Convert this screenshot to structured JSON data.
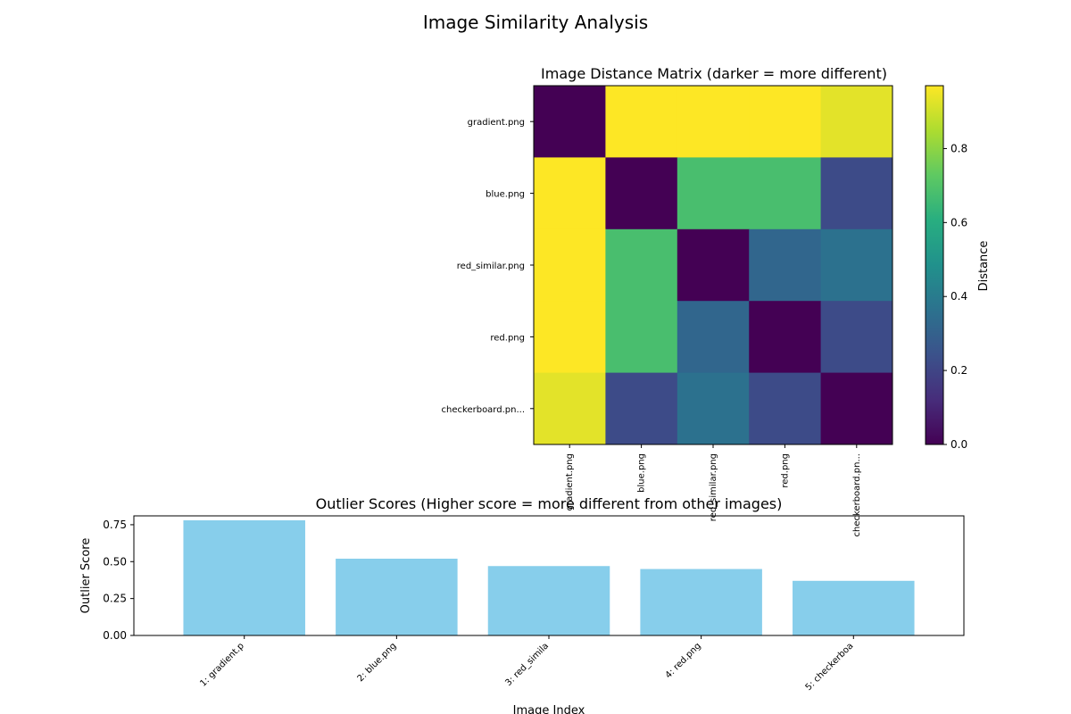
{
  "figure": {
    "title": "Image Similarity Analysis"
  },
  "chart_data": [
    {
      "type": "heatmap",
      "title": "Image Distance Matrix (darker = more different)",
      "row_labels": [
        "gradient.png",
        "blue.png",
        "red_similar.png",
        "red.png",
        "checkerboard.pn..."
      ],
      "col_labels": [
        "gradient.png",
        "blue.png",
        "red_similar.png",
        "red.png",
        "checkerboard.pn..."
      ],
      "values": [
        [
          0.0,
          0.97,
          0.97,
          0.97,
          0.93
        ],
        [
          0.97,
          0.0,
          0.68,
          0.68,
          0.22
        ],
        [
          0.97,
          0.68,
          0.0,
          0.32,
          0.36
        ],
        [
          0.97,
          0.68,
          0.32,
          0.0,
          0.22
        ],
        [
          0.93,
          0.22,
          0.36,
          0.22,
          0.0
        ]
      ],
      "colormap": "viridis",
      "colorbar": {
        "label": "Distance",
        "range": [
          0,
          0.97
        ],
        "ticks": [
          0.0,
          0.2,
          0.4,
          0.6,
          0.8
        ]
      }
    },
    {
      "type": "bar",
      "title": "Outlier Scores (Higher score = more different from other images)",
      "xlabel": "Image Index",
      "ylabel": "Outlier Score",
      "categories": [
        "1: gradient.p",
        "2: blue.png",
        "3: red_simila",
        "4: red.png",
        "5: checkerboa"
      ],
      "values": [
        0.78,
        0.52,
        0.47,
        0.45,
        0.37
      ],
      "ylim": [
        0,
        0.81
      ],
      "yticks": [
        0.0,
        0.25,
        0.5,
        0.75
      ],
      "bar_color": "#87ceeb"
    }
  ]
}
